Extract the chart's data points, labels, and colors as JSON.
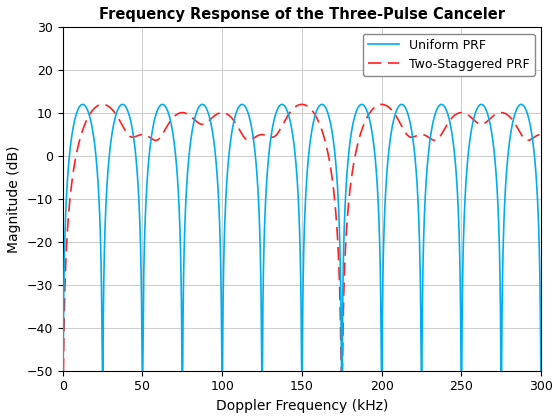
{
  "title": "Frequency Response of the Three-Pulse Canceler",
  "xlabel": "Doppler Frequency (kHz)",
  "ylabel": "Magnitude (dB)",
  "xlim": [
    0,
    300
  ],
  "ylim": [
    -50,
    30
  ],
  "xticks": [
    0,
    50,
    100,
    150,
    200,
    250,
    300
  ],
  "yticks": [
    -50,
    -40,
    -30,
    -20,
    -10,
    0,
    10,
    20,
    30
  ],
  "uniform_color": "#00AEEF",
  "stagger_color": "#FF2020",
  "uniform_label": "Uniform PRF",
  "stagger_label": "Two-Staggered PRF",
  "uniform_prf_khz": 25,
  "stagger_T2_T1_ratio": 1.3333333,
  "background": "#FFFFFF",
  "grid_color": "#CCCCCC"
}
